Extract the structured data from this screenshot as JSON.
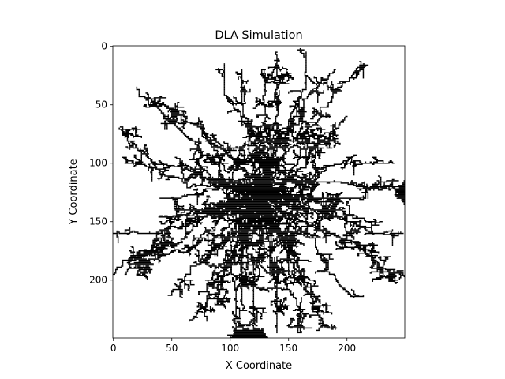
{
  "chart_data": {
    "type": "heatmap",
    "title": "DLA Simulation",
    "xlabel": "X Coordinate",
    "ylabel": "Y Coordinate",
    "xlim": [
      -0.5,
      249.5
    ],
    "ylim": [
      249.5,
      -0.5
    ],
    "x_ticks": [
      0,
      50,
      100,
      150,
      200
    ],
    "y_ticks": [
      0,
      50,
      100,
      150,
      200
    ],
    "x_tick_labels": [
      "0",
      "50",
      "100",
      "150",
      "200"
    ],
    "y_tick_labels": [
      "0",
      "50",
      "100",
      "150",
      "200"
    ],
    "grid": false,
    "colors": {
      "background": "#ffffff",
      "particle": "#000000"
    },
    "seed_point": [
      125,
      125
    ],
    "dendrite_tips": [
      [
        0,
        160
      ],
      [
        0,
        195
      ],
      [
        10,
        195
      ],
      [
        5,
        70
      ],
      [
        10,
        100
      ],
      [
        20,
        35
      ],
      [
        45,
        50
      ],
      [
        40,
        130
      ],
      [
        80,
        235
      ],
      [
        20,
        190
      ],
      [
        50,
        210
      ],
      [
        65,
        235
      ],
      [
        75,
        70
      ],
      [
        85,
        140
      ],
      [
        95,
        130
      ],
      [
        65,
        175
      ],
      [
        85,
        175
      ],
      [
        95,
        15
      ],
      [
        110,
        20
      ],
      [
        130,
        20
      ],
      [
        140,
        5
      ],
      [
        165,
        5
      ],
      [
        190,
        20
      ],
      [
        215,
        15
      ],
      [
        200,
        60
      ],
      [
        180,
        80
      ],
      [
        165,
        120
      ],
      [
        215,
        130
      ],
      [
        230,
        150
      ],
      [
        240,
        100
      ],
      [
        248,
        120
      ],
      [
        248,
        160
      ],
      [
        220,
        180
      ],
      [
        240,
        200
      ],
      [
        200,
        210
      ],
      [
        175,
        215
      ],
      [
        185,
        240
      ],
      [
        160,
        245
      ],
      [
        120,
        245
      ],
      [
        140,
        245
      ],
      [
        105,
        245
      ],
      [
        125,
        195
      ],
      [
        110,
        220
      ],
      [
        150,
        200
      ],
      [
        40,
        150
      ],
      [
        60,
        105
      ],
      [
        110,
        175
      ],
      [
        150,
        165
      ]
    ]
  }
}
